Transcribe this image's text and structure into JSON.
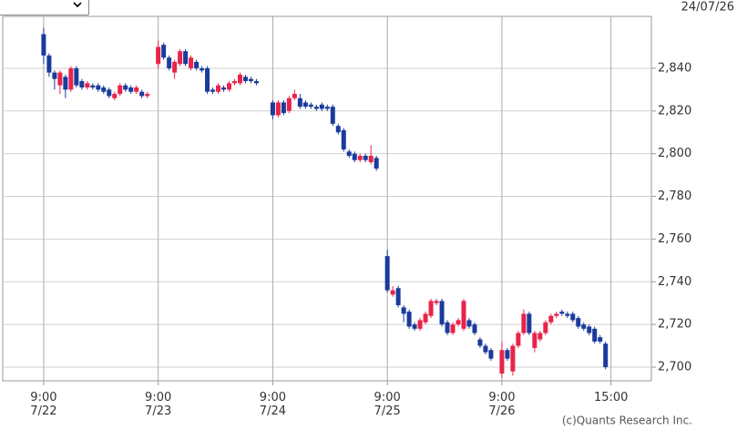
{
  "chart_data": {
    "type": "candlestick",
    "date": "24/07/26",
    "credit": "(c)Quants Research Inc.",
    "up_color": "#e8234a",
    "down_color": "#1a3a9c",
    "grid": true,
    "xlim": [
      -7.5,
      111.4
    ],
    "xticks": [
      {
        "value": 0,
        "label": "9:00\n7/22"
      },
      {
        "value": 21,
        "label": "9:00\n7/23"
      },
      {
        "value": 42,
        "label": "9:00\n7/24"
      },
      {
        "value": 63,
        "label": "9:00\n7/25"
      },
      {
        "value": 84,
        "label": "9:00\n7/26"
      },
      {
        "value": 104,
        "label": "15:00"
      }
    ],
    "ylim": [
      2693.6,
      2864.3
    ],
    "yticks": [
      {
        "value": 2700,
        "label": "2,700"
      },
      {
        "value": 2720,
        "label": "2,720"
      },
      {
        "value": 2740,
        "label": "2,740"
      },
      {
        "value": 2760,
        "label": "2,760"
      },
      {
        "value": 2780,
        "label": "2,780"
      },
      {
        "value": 2800,
        "label": "2,800"
      },
      {
        "value": 2820,
        "label": "2,820"
      },
      {
        "value": 2840,
        "label": "2,840"
      }
    ],
    "x": [
      0,
      1,
      2,
      3,
      4,
      5,
      6,
      7,
      8,
      9,
      10,
      11,
      12,
      13,
      14,
      15,
      16,
      17,
      18,
      19,
      21,
      22,
      23,
      24,
      25,
      26,
      27,
      28,
      29,
      30,
      31,
      32,
      33,
      34,
      35,
      36,
      37,
      38,
      39,
      42,
      43,
      44,
      45,
      46,
      47,
      48,
      49,
      50,
      51,
      52,
      53,
      54,
      55,
      56,
      57,
      58,
      59,
      60,
      61,
      63,
      64,
      65,
      66,
      67,
      68,
      69,
      70,
      71,
      72,
      73,
      74,
      75,
      76,
      77,
      78,
      79,
      80,
      81,
      82,
      84,
      85,
      86,
      87,
      88,
      89,
      90,
      91,
      92,
      93,
      94,
      95,
      96,
      97,
      98,
      99,
      100,
      101,
      102,
      103
    ],
    "open": [
      2856,
      2846,
      2838,
      2832,
      2836,
      2830,
      2840,
      2834,
      2831,
      2832,
      2832,
      2831,
      2830,
      2826,
      2828,
      2832,
      2831,
      2829,
      2829,
      2827,
      2842,
      2851,
      2845,
      2838,
      2842,
      2848,
      2840,
      2843,
      2840,
      2840,
      2830,
      2829,
      2831,
      2830,
      2833,
      2833,
      2836,
      2835,
      2834,
      2824,
      2818,
      2824,
      2820,
      2826,
      2826,
      2824,
      2823,
      2822,
      2823,
      2822,
      2822,
      2813,
      2811,
      2801,
      2800,
      2797,
      2799,
      2796,
      2798,
      2752,
      2734,
      2737,
      2728,
      2726,
      2720,
      2718,
      2721,
      2724,
      2730,
      2731,
      2721,
      2716,
      2720,
      2718,
      2722,
      2720,
      2713,
      2710,
      2708,
      2697,
      2708,
      2698,
      2710,
      2716,
      2725,
      2709,
      2713,
      2716,
      2721,
      2724,
      2726,
      2725,
      2725,
      2723,
      2720,
      2719,
      2718,
      2714,
      2711
    ],
    "high": [
      2859,
      2847,
      2839,
      2839,
      2837,
      2841,
      2841,
      2835,
      2834,
      2833,
      2833,
      2832,
      2831,
      2829,
      2833,
      2833,
      2832,
      2832,
      2830,
      2829,
      2853,
      2852,
      2846,
      2844,
      2849,
      2849,
      2846,
      2844,
      2841,
      2841,
      2831,
      2833,
      2832,
      2834,
      2835,
      2838,
      2837,
      2836,
      2835,
      2825,
      2825,
      2825,
      2827,
      2830,
      2828,
      2825,
      2824,
      2823,
      2824,
      2823,
      2823,
      2814,
      2812,
      2802,
      2801,
      2800,
      2800,
      2804,
      2799,
      2755,
      2738,
      2738,
      2729,
      2727,
      2721,
      2723,
      2726,
      2732,
      2732,
      2732,
      2722,
      2721,
      2723,
      2732,
      2723,
      2721,
      2714,
      2711,
      2709,
      2712,
      2709,
      2711,
      2717,
      2727,
      2726,
      2717,
      2717,
      2722,
      2725,
      2726,
      2727,
      2726,
      2726,
      2724,
      2721,
      2720,
      2719,
      2715,
      2712
    ],
    "low": [
      2842,
      2836,
      2830,
      2828,
      2826,
      2829,
      2831,
      2830,
      2830,
      2830,
      2829,
      2828,
      2826,
      2825,
      2827,
      2829,
      2828,
      2828,
      2826,
      2826,
      2840,
      2844,
      2839,
      2835,
      2841,
      2841,
      2839,
      2839,
      2838,
      2828,
      2828,
      2828,
      2829,
      2829,
      2832,
      2832,
      2833,
      2833,
      2832,
      2816,
      2817,
      2818,
      2819,
      2825,
      2821,
      2821,
      2821,
      2820,
      2820,
      2820,
      2813,
      2809,
      2801,
      2798,
      2796,
      2796,
      2796,
      2795,
      2792,
      2735,
      2733,
      2728,
      2721,
      2718,
      2717,
      2717,
      2720,
      2723,
      2729,
      2719,
      2715,
      2715,
      2719,
      2717,
      2718,
      2715,
      2709,
      2706,
      2703,
      2695,
      2703,
      2696,
      2709,
      2715,
      2715,
      2707,
      2712,
      2715,
      2720,
      2723,
      2724,
      2723,
      2721,
      2718,
      2717,
      2715,
      2711,
      2711,
      2699
    ],
    "close": [
      2846,
      2838,
      2835,
      2838,
      2830,
      2840,
      2832,
      2831,
      2833,
      2831,
      2830,
      2829,
      2827,
      2828,
      2832,
      2830,
      2829,
      2831,
      2827,
      2828,
      2850,
      2845,
      2840,
      2843,
      2848,
      2842,
      2845,
      2840,
      2839,
      2829,
      2829,
      2832,
      2830,
      2833,
      2834,
      2837,
      2834,
      2834,
      2833,
      2818,
      2824,
      2819,
      2826,
      2828,
      2822,
      2822,
      2822,
      2821,
      2821,
      2821,
      2814,
      2810,
      2802,
      2799,
      2797,
      2799,
      2797,
      2799,
      2793,
      2736,
      2736,
      2729,
      2725,
      2719,
      2718,
      2722,
      2725,
      2731,
      2731,
      2720,
      2716,
      2720,
      2722,
      2731,
      2719,
      2716,
      2710,
      2707,
      2704,
      2708,
      2704,
      2710,
      2716,
      2725,
      2716,
      2716,
      2716,
      2721,
      2724,
      2725,
      2725,
      2724,
      2722,
      2719,
      2718,
      2716,
      2712,
      2712,
      2700
    ]
  }
}
